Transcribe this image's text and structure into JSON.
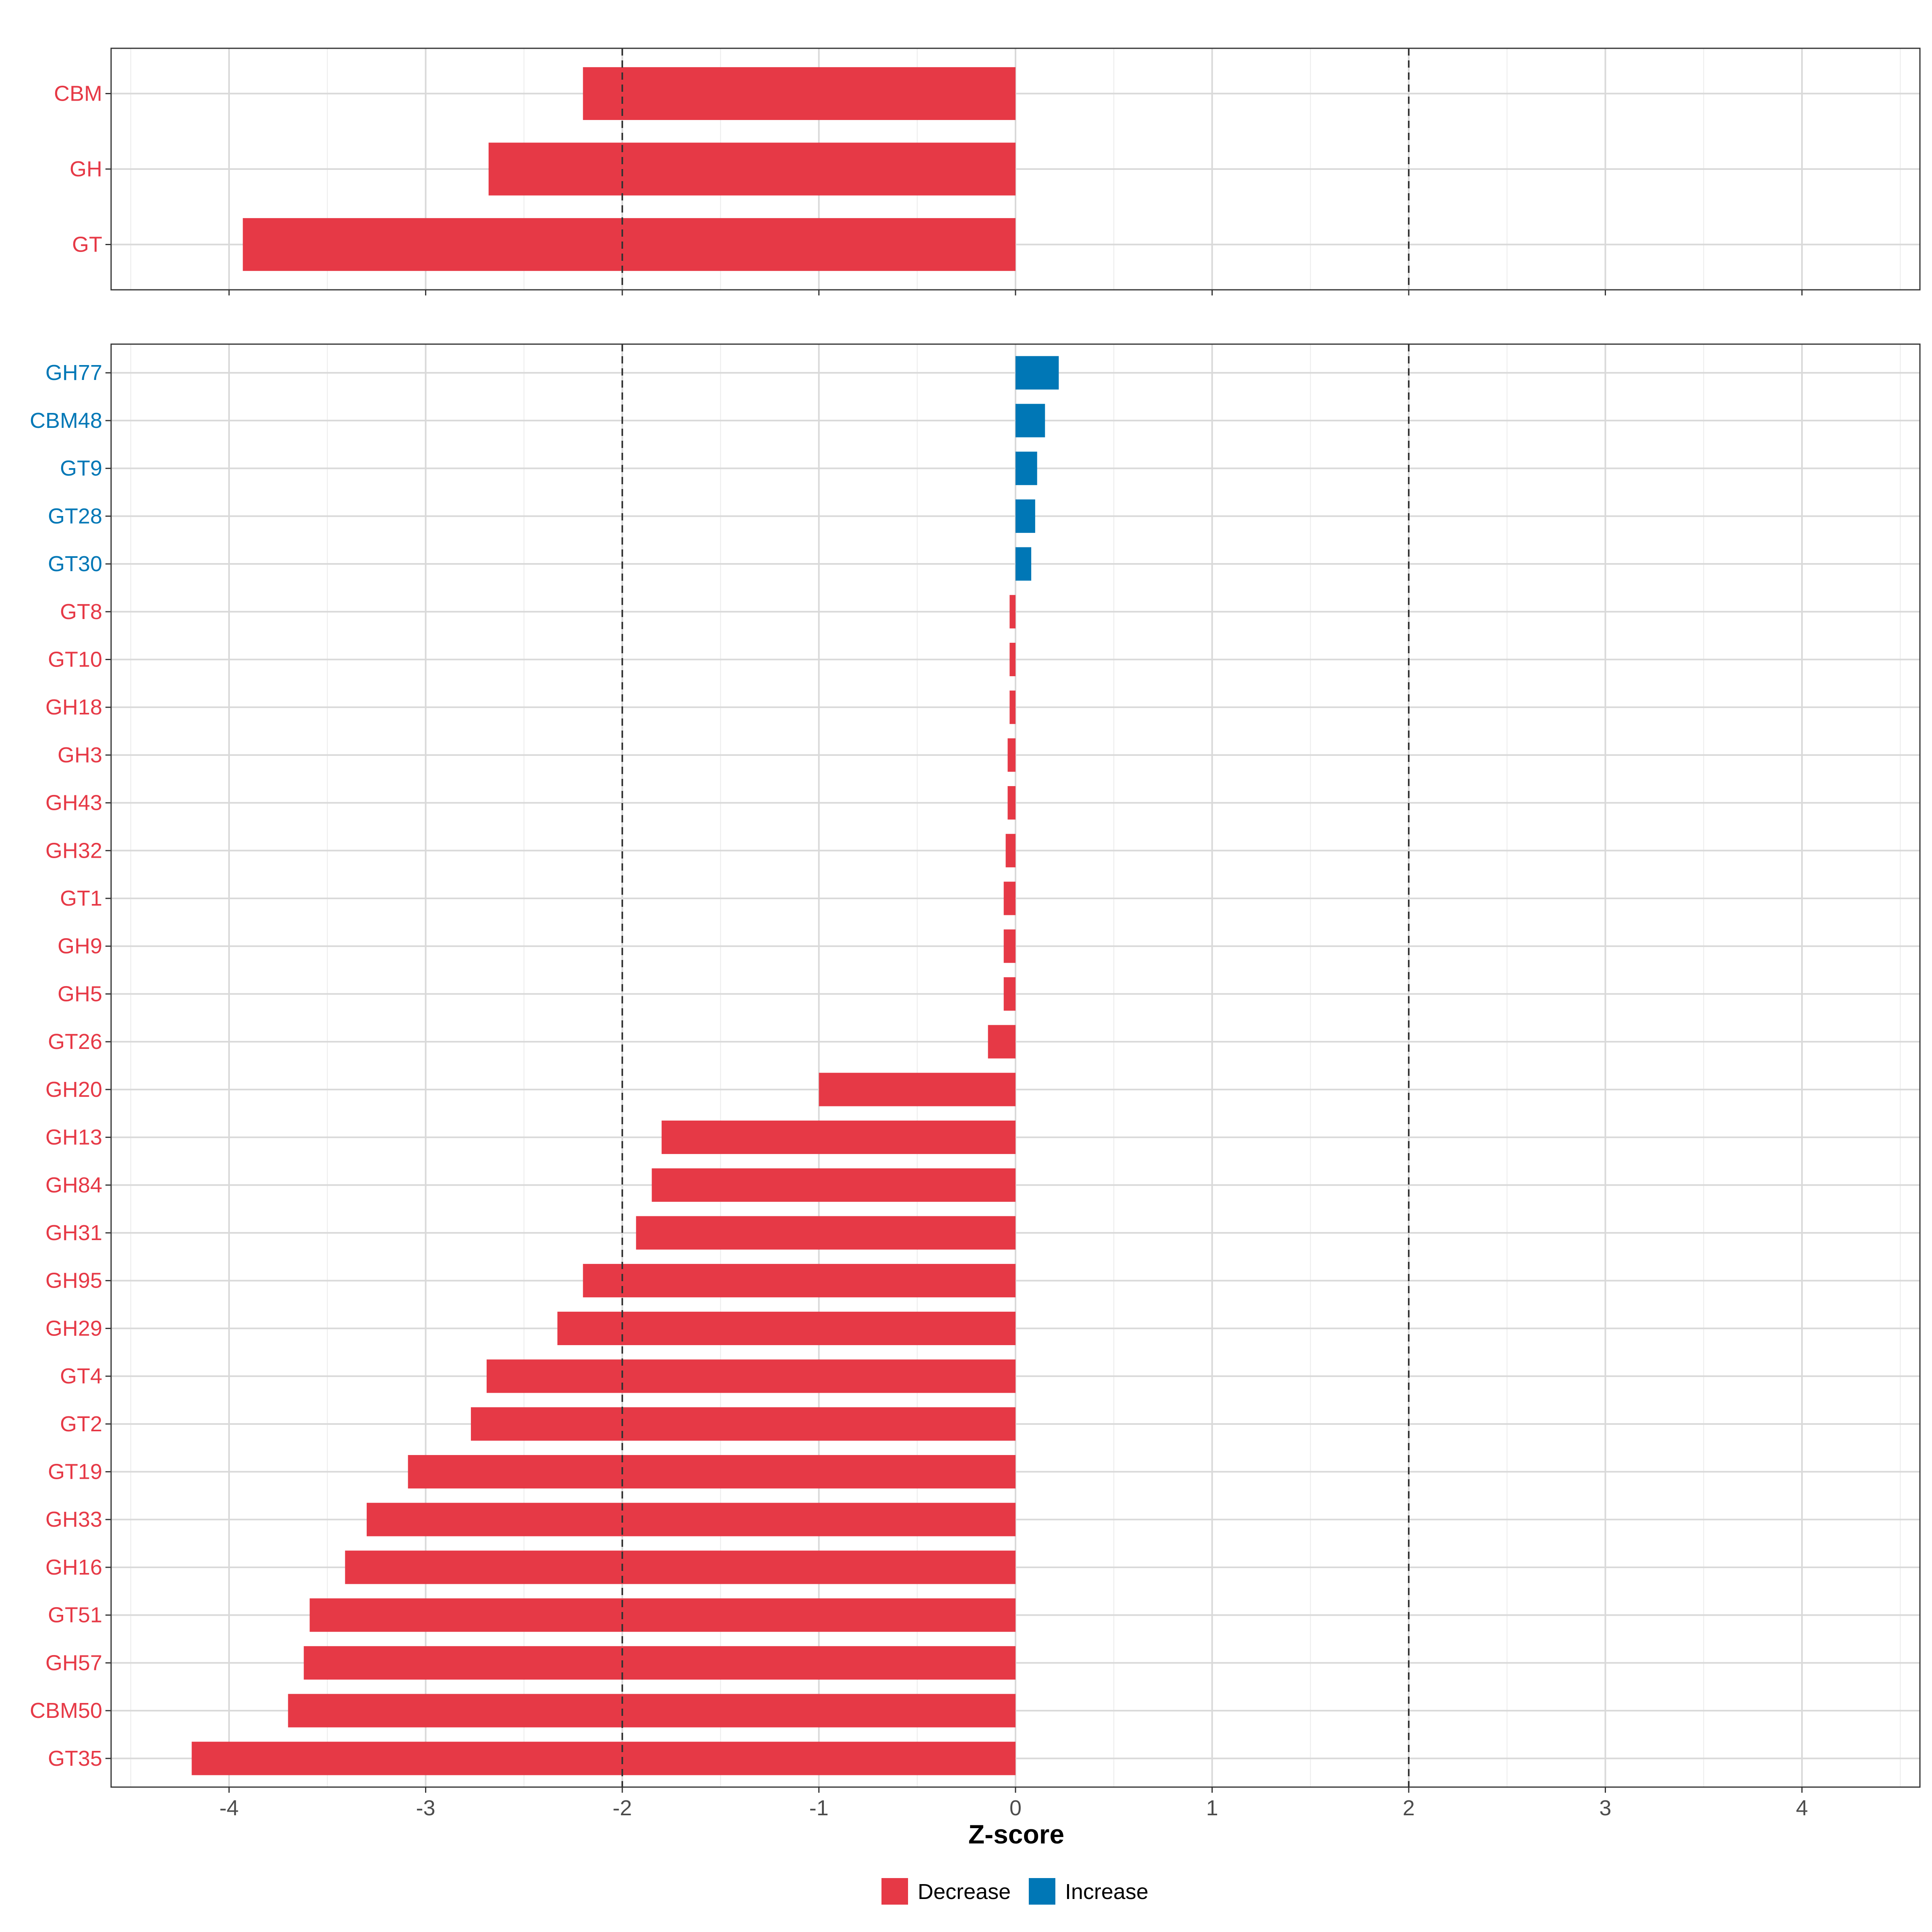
{
  "chart_data": {
    "type": "bar",
    "orientation": "horizontal",
    "xlabel": "Z-score",
    "xlim": [
      -4.6,
      4.6
    ],
    "x_ticks": [
      -4,
      -3,
      -2,
      -1,
      0,
      1,
      2,
      3,
      4
    ],
    "reference_lines": [
      -2,
      2
    ],
    "grid": true,
    "legend_position": "bottom",
    "legend": [
      {
        "key": "Decrease",
        "label": "Decrease",
        "color": "#E63946"
      },
      {
        "key": "Increase",
        "label": "Increase",
        "color": "#0077B6"
      }
    ],
    "panels": [
      {
        "name": "summary",
        "categories": [
          "CBM",
          "GH",
          "GT"
        ],
        "values": [
          -2.2,
          -2.68,
          -3.93
        ],
        "direction": [
          "Decrease",
          "Decrease",
          "Decrease"
        ]
      },
      {
        "name": "families",
        "categories": [
          "GH77",
          "CBM48",
          "GT9",
          "GT28",
          "GT30",
          "GT8",
          "GT10",
          "GH18",
          "GH3",
          "GH43",
          "GH32",
          "GT1",
          "GH9",
          "GH5",
          "GT26",
          "GH20",
          "GH13",
          "GH84",
          "GH31",
          "GH95",
          "GH29",
          "GT4",
          "GT2",
          "GT19",
          "GH33",
          "GH16",
          "GT51",
          "GH57",
          "CBM50",
          "GT35"
        ],
        "values": [
          0.22,
          0.15,
          0.11,
          0.1,
          0.08,
          -0.03,
          -0.03,
          -0.03,
          -0.04,
          -0.04,
          -0.05,
          -0.06,
          -0.06,
          -0.06,
          -0.14,
          -1.0,
          -1.8,
          -1.85,
          -1.93,
          -2.2,
          -2.33,
          -2.69,
          -2.77,
          -3.09,
          -3.3,
          -3.41,
          -3.59,
          -3.62,
          -3.7,
          -4.19
        ],
        "direction": [
          "Increase",
          "Increase",
          "Increase",
          "Increase",
          "Increase",
          "Decrease",
          "Decrease",
          "Decrease",
          "Decrease",
          "Decrease",
          "Decrease",
          "Decrease",
          "Decrease",
          "Decrease",
          "Decrease",
          "Decrease",
          "Decrease",
          "Decrease",
          "Decrease",
          "Decrease",
          "Decrease",
          "Decrease",
          "Decrease",
          "Decrease",
          "Decrease",
          "Decrease",
          "Decrease",
          "Decrease",
          "Decrease",
          "Decrease"
        ]
      }
    ]
  }
}
